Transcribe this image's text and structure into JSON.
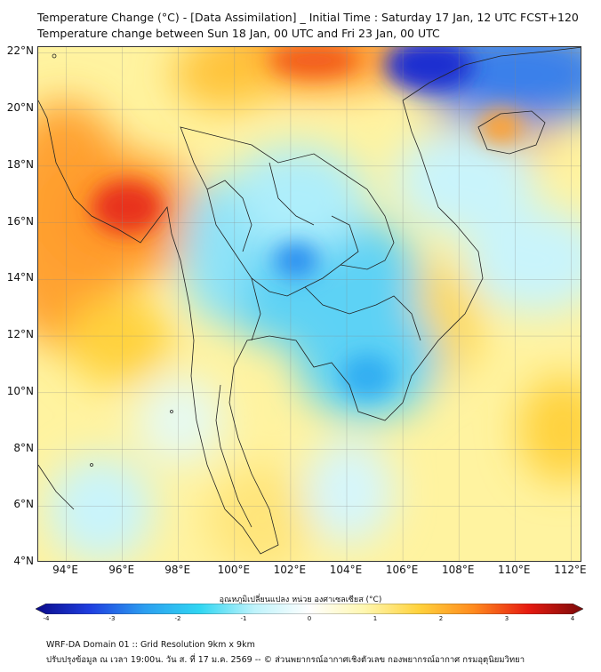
{
  "header": {
    "title_line1": "Temperature Change (°C) - [Data Assimilation] _ Initial Time : Saturday 17 Jan, 12 UTC FCST+120",
    "title_line2": "Temperature change between Sun 18 Jan, 00 UTC and Fri 23 Jan, 00 UTC"
  },
  "map": {
    "lat_labels": [
      "22°N",
      "20°N",
      "18°N",
      "16°N",
      "14°N",
      "12°N",
      "10°N",
      "8°N",
      "6°N",
      "4°N"
    ],
    "lon_labels": [
      "94°E",
      "96°E",
      "98°E",
      "100°E",
      "102°E",
      "104°E",
      "106°E",
      "108°E",
      "110°E",
      "112°E"
    ],
    "lat_range": [
      4,
      22.2
    ],
    "lon_range": [
      93,
      112.4
    ]
  },
  "colorbar": {
    "title": "อุณหภูมิเปลี่ยนแปลง หน่วย องศาเซลเซียส (°C)",
    "ticks": [
      "-4",
      "-3",
      "-2",
      "-1",
      "0",
      "1",
      "2",
      "3",
      "4"
    ],
    "range": [
      -4,
      4
    ],
    "colors": [
      "#0a0a8a",
      "#1f3fe0",
      "#2c9ff0",
      "#30d6f2",
      "#bff3fb",
      "#ffffff",
      "#fff7b0",
      "#ffd23c",
      "#ff8a1e",
      "#e61a10",
      "#7a0a0a"
    ]
  },
  "footer": {
    "line1": "WRF-DA Domain 01 :: Grid Resolution 9km x 9km",
    "line2": "ปรับปรุงข้อมูล ณ เวลา 19:00น. วัน ส. ที่ 17 ม.ค. 2569 -- © ส่วนพยากรณ์อากาศเชิงตัวเลข กองพยากรณ์อากาศ กรมอุตุนิยมวิทยา"
  }
}
